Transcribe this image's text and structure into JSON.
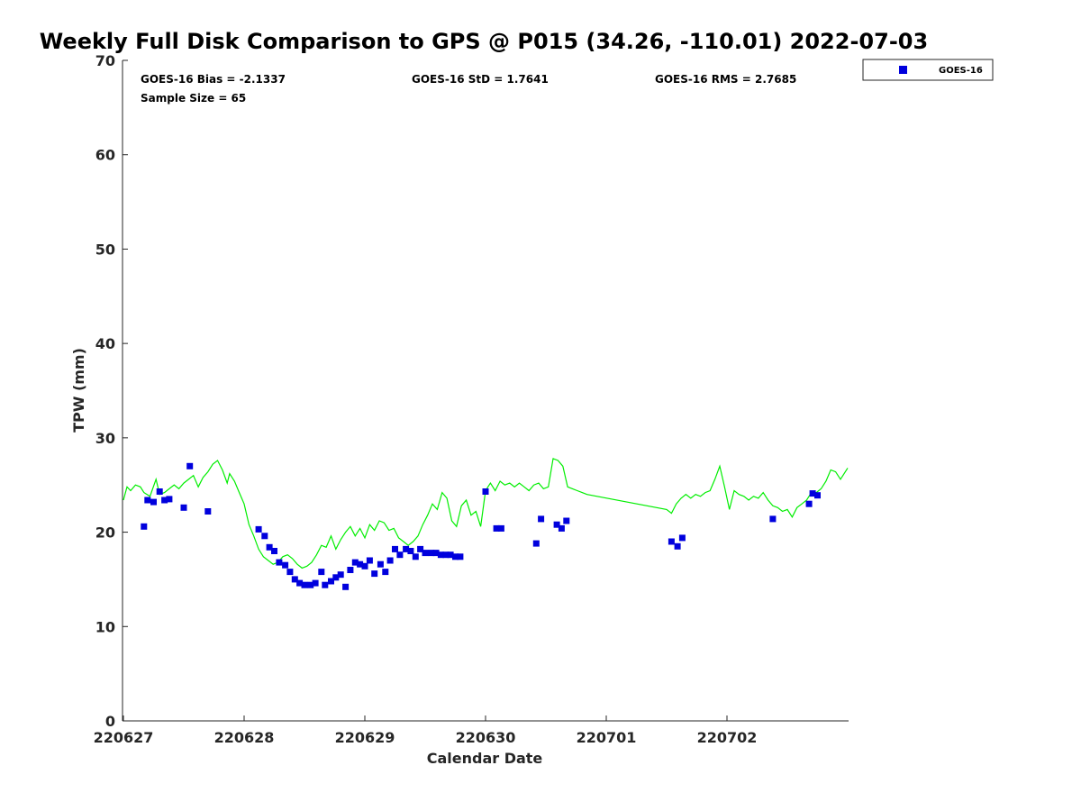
{
  "chart_data": {
    "type": "scatter",
    "title": "Weekly Full Disk Comparison to GPS @ P015 (34.26, -110.01) 2022-07-03",
    "xlabel": "Calendar Date",
    "ylabel": "TPW (mm)",
    "xlim": [
      0,
      6.0
    ],
    "ylim": [
      0,
      70
    ],
    "x_ticks": [
      0,
      1,
      2,
      3,
      4,
      5
    ],
    "x_tick_labels": [
      "220627",
      "220628",
      "220629",
      "220630",
      "220701",
      "220702"
    ],
    "y_ticks": [
      0,
      10,
      20,
      30,
      40,
      50,
      60,
      70
    ],
    "y_tick_labels": [
      "0",
      "10",
      "20",
      "30",
      "40",
      "50",
      "60",
      "70"
    ],
    "grid": false,
    "legend": {
      "placement": "top-right",
      "entries": [
        "GOES-16"
      ]
    },
    "stats": {
      "bias": "GOES-16 Bias = -2.1337",
      "std": "GOES-16 StD = 1.7641",
      "rms": "GOES-16 RMS = 2.7685",
      "sample": "Sample Size = 65"
    },
    "series": [
      {
        "name": "GOES-16",
        "kind": "points",
        "color": "#0000dd",
        "x": [
          0.17,
          0.2,
          0.25,
          0.3,
          0.34,
          0.38,
          0.5,
          0.55,
          0.7,
          1.12,
          1.17,
          1.21,
          1.25,
          1.29,
          1.34,
          1.38,
          1.42,
          1.46,
          1.5,
          1.55,
          1.59,
          1.64,
          1.67,
          1.72,
          1.76,
          1.8,
          1.84,
          1.88,
          1.92,
          1.96,
          2.0,
          2.04,
          2.08,
          2.13,
          2.17,
          2.21,
          2.25,
          2.29,
          2.34,
          2.38,
          2.42,
          2.46,
          2.5,
          2.55,
          2.59,
          2.63,
          2.67,
          2.71,
          2.75,
          2.79,
          3.0,
          3.09,
          3.13,
          3.42,
          3.46,
          3.59,
          3.63,
          3.67,
          4.54,
          4.59,
          4.63,
          5.38,
          5.68,
          5.71,
          5.75
        ],
        "y": [
          20.6,
          23.4,
          23.2,
          24.3,
          23.4,
          23.5,
          22.6,
          27.0,
          22.2,
          20.3,
          19.6,
          18.4,
          18.0,
          16.8,
          16.5,
          15.8,
          15.0,
          14.6,
          14.4,
          14.4,
          14.6,
          15.8,
          14.4,
          14.8,
          15.2,
          15.5,
          14.2,
          16.0,
          16.8,
          16.6,
          16.4,
          17.0,
          15.6,
          16.6,
          15.8,
          17.0,
          18.2,
          17.6,
          18.2,
          18.0,
          17.4,
          18.2,
          17.8,
          17.8,
          17.8,
          17.6,
          17.6,
          17.6,
          17.4,
          17.4,
          24.3,
          20.4,
          20.4,
          18.8,
          21.4,
          20.8,
          20.4,
          21.2,
          19.0,
          18.5,
          19.4,
          21.4,
          23.0,
          24.1,
          23.9
        ]
      },
      {
        "name": "",
        "kind": "line",
        "color": "#00ee00",
        "x": [
          0.0,
          0.03,
          0.06,
          0.1,
          0.14,
          0.17,
          0.22,
          0.27,
          0.3,
          0.34,
          0.38,
          0.42,
          0.46,
          0.5,
          0.54,
          0.58,
          0.62,
          0.66,
          0.7,
          0.74,
          0.78,
          0.82,
          0.86,
          0.88,
          0.92,
          0.96,
          1.0,
          1.04,
          1.08,
          1.12,
          1.16,
          1.2,
          1.24,
          1.28,
          1.32,
          1.36,
          1.4,
          1.44,
          1.48,
          1.52,
          1.56,
          1.6,
          1.64,
          1.68,
          1.72,
          1.76,
          1.8,
          1.84,
          1.88,
          1.92,
          1.96,
          2.0,
          2.04,
          2.08,
          2.12,
          2.16,
          2.2,
          2.24,
          2.28,
          2.32,
          2.36,
          2.4,
          2.44,
          2.48,
          2.52,
          2.56,
          2.6,
          2.64,
          2.68,
          2.72,
          2.76,
          2.8,
          2.84,
          2.88,
          2.92,
          2.96,
          3.0,
          3.04,
          3.08,
          3.12,
          3.16,
          3.2,
          3.24,
          3.28,
          3.32,
          3.36,
          3.4,
          3.44,
          3.48,
          3.52,
          3.56,
          3.6,
          3.64,
          3.68,
          3.72,
          3.76,
          3.8,
          3.84,
          4.5,
          4.54,
          4.58,
          4.62,
          4.66,
          4.7,
          4.74,
          4.78,
          4.82,
          4.86,
          4.9,
          4.94,
          4.98,
          5.02,
          5.06,
          5.1,
          5.14,
          5.18,
          5.22,
          5.26,
          5.3,
          5.34,
          5.38,
          5.42,
          5.46,
          5.5,
          5.54,
          5.58,
          5.62,
          5.66,
          5.7,
          5.74,
          5.78,
          5.82,
          5.86,
          5.9,
          5.94,
          6.0
        ],
        "y": [
          23.4,
          24.8,
          24.4,
          25.0,
          24.8,
          24.2,
          23.8,
          25.6,
          24.0,
          24.2,
          24.6,
          25.0,
          24.6,
          25.2,
          25.6,
          26.0,
          24.8,
          25.8,
          26.4,
          27.2,
          27.6,
          26.6,
          25.2,
          26.2,
          25.4,
          24.2,
          23.0,
          20.8,
          19.6,
          18.2,
          17.4,
          17.0,
          16.6,
          16.8,
          17.4,
          17.6,
          17.2,
          16.6,
          16.2,
          16.4,
          16.8,
          17.6,
          18.6,
          18.4,
          19.6,
          18.2,
          19.2,
          20.0,
          20.6,
          19.6,
          20.4,
          19.4,
          20.8,
          20.2,
          21.2,
          21.0,
          20.2,
          20.4,
          19.4,
          19.0,
          18.6,
          19.0,
          19.6,
          20.8,
          21.8,
          23.0,
          22.4,
          24.2,
          23.6,
          21.2,
          20.6,
          22.8,
          23.4,
          21.8,
          22.2,
          20.6,
          24.4,
          25.2,
          24.4,
          25.4,
          25.0,
          25.2,
          24.8,
          25.2,
          24.8,
          24.4,
          25.0,
          25.2,
          24.6,
          24.8,
          27.8,
          27.6,
          27.0,
          24.8,
          24.6,
          24.4,
          24.2,
          24.0,
          22.4,
          22.0,
          23.0,
          23.6,
          24.0,
          23.6,
          24.0,
          23.8,
          24.2,
          24.4,
          25.6,
          27.0,
          24.8,
          22.4,
          24.4,
          24.0,
          23.8,
          23.4,
          23.8,
          23.6,
          24.2,
          23.4,
          22.8,
          22.6,
          22.2,
          22.4,
          21.6,
          22.6,
          23.0,
          23.4,
          24.2,
          24.2,
          24.6,
          25.4,
          26.6,
          26.4,
          25.6,
          26.8
        ]
      }
    ]
  }
}
